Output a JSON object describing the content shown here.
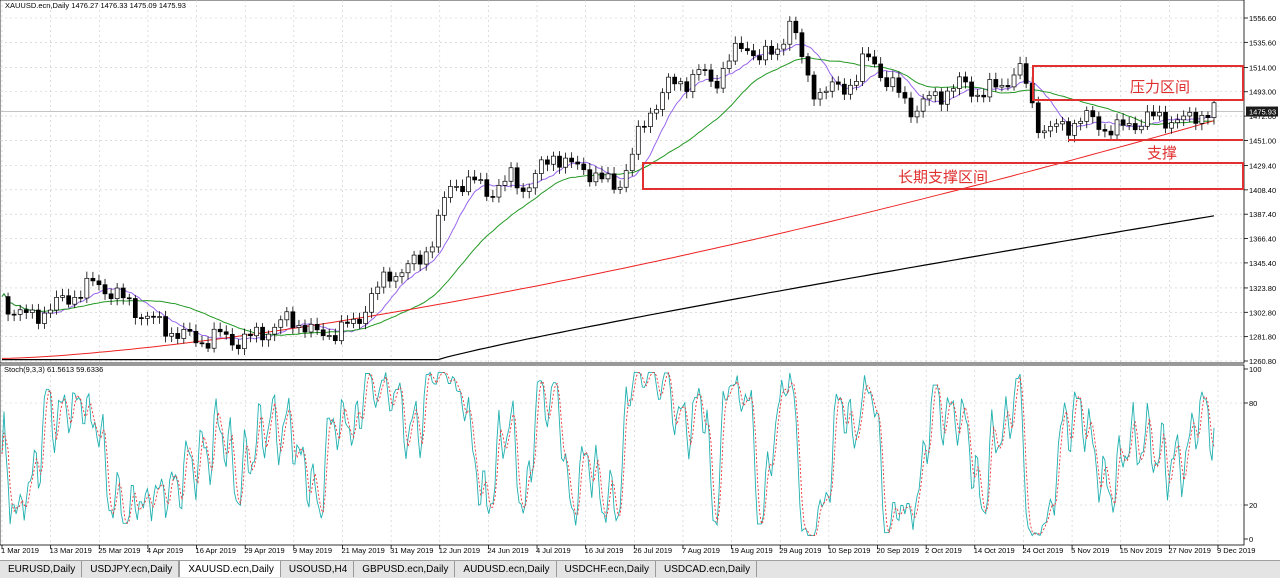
{
  "main_title": "XAUUSD.ecn,Daily  1476.27 1476.33 1475.09 1475.93",
  "stoch_title": "Stoch(9,3,3) 61.5613 59.6336",
  "price_labels": [
    "1556.60",
    "1535.60",
    "1514.00",
    "1493.00",
    "1472.00",
    "1451.00",
    "1429.40",
    "1408.40",
    "1387.40",
    "1366.40",
    "1345.40",
    "1323.80",
    "1302.80",
    "1281.80",
    "1260.80"
  ],
  "current_price": "1475.93",
  "stoch_labels": [
    "100",
    "80",
    "20",
    "0"
  ],
  "date_labels": [
    "1 Mar 2019",
    "13 Mar 2019",
    "25 Mar 2019",
    "4 Apr 2019",
    "16 Apr 2019",
    "29 Apr 2019",
    "9 May 2019",
    "21 May 2019",
    "31 May 2019",
    "12 Jun 2019",
    "24 Jun 2019",
    "4 Jul 2019",
    "16 Jul 2019",
    "26 Jul 2019",
    "7 Aug 2019",
    "19 Aug 2019",
    "29 Aug 2019",
    "10 Sep 2019",
    "20 Sep 2019",
    "2 Oct 2019",
    "14 Oct 2019",
    "24 Oct 2019",
    "5 Nov 2019",
    "15 Nov 2019",
    "27 Nov 2019",
    "9 Dec 2019"
  ],
  "annotations": {
    "resistance": "压力区间",
    "support": "支撑",
    "long_support": "长期支撑区间"
  },
  "colors": {
    "annotation": "#e03030",
    "ma_purple": "#9966ee",
    "ma_green": "#229922",
    "ma_red": "#ee2222",
    "ma_black": "#000000",
    "stoch_main": "#20b0b0",
    "stoch_signal": "#ee3333"
  },
  "tabs": [
    {
      "label": "EURUSD,Daily",
      "active": false
    },
    {
      "label": "USDJPY.ecn,Daily",
      "active": false
    },
    {
      "label": "XAUUSD.ecn,Daily",
      "active": true
    },
    {
      "label": "USOUSD,H4",
      "active": false
    },
    {
      "label": "GBPUSD.ecn,Daily",
      "active": false
    },
    {
      "label": "AUDUSD.ecn,Daily",
      "active": false
    },
    {
      "label": "USDCHF.ecn,Daily",
      "active": false
    },
    {
      "label": "USDCAD.ecn,Daily",
      "active": false
    }
  ]
}
